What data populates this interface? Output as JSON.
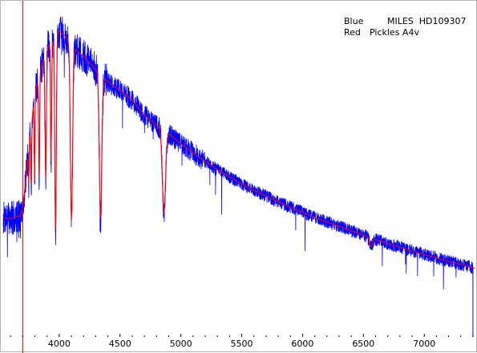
{
  "chart_data": {
    "type": "line",
    "title": "",
    "xlabel": "",
    "ylabel": "",
    "xlim": [
      3520,
      7440
    ],
    "ylim": [
      0,
      1.0
    ],
    "x_ticks": [
      4000,
      4500,
      5000,
      5500,
      6000,
      6500,
      7000
    ],
    "x_tick_labels": [
      "4000",
      "4500",
      "5000",
      "5500",
      "6000",
      "6500",
      "7000"
    ],
    "grid": false,
    "legend_position": "top-right",
    "legend": [
      {
        "key": "Blue",
        "label": "MILES  HD109307",
        "color": "#0000ff"
      },
      {
        "key": "Red",
        "label": "Pickles A4v",
        "color": "#ff0000"
      }
    ],
    "marker_line": {
      "x": 3700,
      "color": "#c00000"
    },
    "continuum": {
      "x": [
        3540,
        3600,
        3650,
        3680,
        3700,
        3720,
        3760,
        3800,
        3850,
        3900,
        3950,
        4000,
        4050,
        4100,
        4150,
        4200,
        4250,
        4300,
        4350,
        4400,
        4450,
        4500,
        4600,
        4700,
        4800,
        4900,
        5000,
        5100,
        5200,
        5300,
        5400,
        5500,
        5600,
        5700,
        5800,
        5900,
        6000,
        6100,
        6200,
        6300,
        6400,
        6500,
        6600,
        6700,
        6800,
        6900,
        7000,
        7100,
        7200,
        7300,
        7400
      ],
      "y": [
        0.355,
        0.352,
        0.358,
        0.36,
        0.38,
        0.45,
        0.6,
        0.72,
        0.8,
        0.86,
        0.88,
        0.91,
        0.895,
        0.87,
        0.85,
        0.835,
        0.815,
        0.795,
        0.775,
        0.76,
        0.745,
        0.735,
        0.705,
        0.66,
        0.63,
        0.605,
        0.575,
        0.548,
        0.522,
        0.498,
        0.476,
        0.455,
        0.436,
        0.419,
        0.402,
        0.386,
        0.371,
        0.356,
        0.342,
        0.329,
        0.316,
        0.303,
        0.29,
        0.278,
        0.267,
        0.256,
        0.245,
        0.235,
        0.225,
        0.216,
        0.205
      ]
    },
    "absorption_lines": [
      {
        "x": 3750,
        "depth": 0.18,
        "width": 3
      },
      {
        "x": 3770,
        "depth": 0.3,
        "width": 3
      },
      {
        "x": 3798,
        "depth": 0.35,
        "width": 3
      },
      {
        "x": 3835,
        "depth": 0.4,
        "width": 4
      },
      {
        "x": 3889,
        "depth": 0.45,
        "width": 5
      },
      {
        "x": 3933,
        "depth": 0.4,
        "width": 4
      },
      {
        "x": 3970,
        "depth": 0.65,
        "width": 6
      },
      {
        "x": 4101,
        "depth": 0.6,
        "width": 9
      },
      {
        "x": 4340,
        "depth": 0.55,
        "width": 10
      },
      {
        "x": 4861,
        "depth": 0.4,
        "width": 13
      },
      {
        "x": 6563,
        "depth": 0.09,
        "width": 12
      }
    ],
    "series": [
      {
        "name": "MILES  HD109307",
        "color": "#0000ff",
        "noise": 0.032,
        "x_range": [
          3540,
          7400
        ],
        "jitter_seed": 7
      },
      {
        "name": "Pickles A4v",
        "color": "#ff0000",
        "noise": 0.0,
        "x_range": [
          3540,
          7420
        ],
        "jitter_seed": 3
      }
    ]
  },
  "legend": {
    "blue_key": "Blue",
    "blue_label": "MILES  HD109307",
    "red_key": "Red",
    "red_label": "Pickles A4v"
  }
}
